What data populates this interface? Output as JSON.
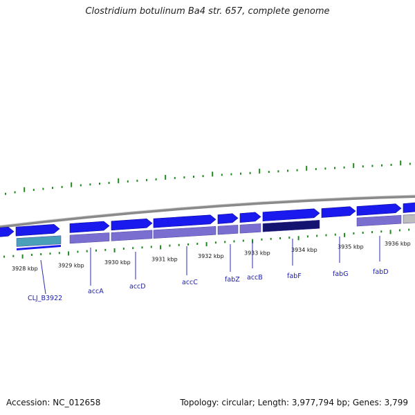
{
  "title": "Clostridium botulinum Ba4 str. 657, complete genome",
  "footer": {
    "accession": "Accession: NC_012658",
    "summary": "Topology: circular; Length: 3,977,794 bp; Genes: 3,799"
  },
  "colors": {
    "backbone": "#8a8a8a",
    "cds_forward": "#1a1aee",
    "feature_track": "#7a6fd0",
    "feature_dark": "#141470",
    "feature_grey": "#bdbdbd",
    "feature_teal": "#4aa0b8",
    "ticks": "#1e8a1e",
    "gene_label": "#1a1aa8"
  },
  "scale_labels": [
    "3928 kbp",
    "3929 kbp",
    "3930 kbp",
    "3931 kbp",
    "3932 kbp",
    "3933 kbp",
    "3934 kbp",
    "3935 kbp",
    "3936 kbp"
  ],
  "genes": [
    "CLJ_B3922",
    "accA",
    "accD",
    "accC",
    "fabZ",
    "accB",
    "fabF",
    "fabG",
    "fabD"
  ]
}
